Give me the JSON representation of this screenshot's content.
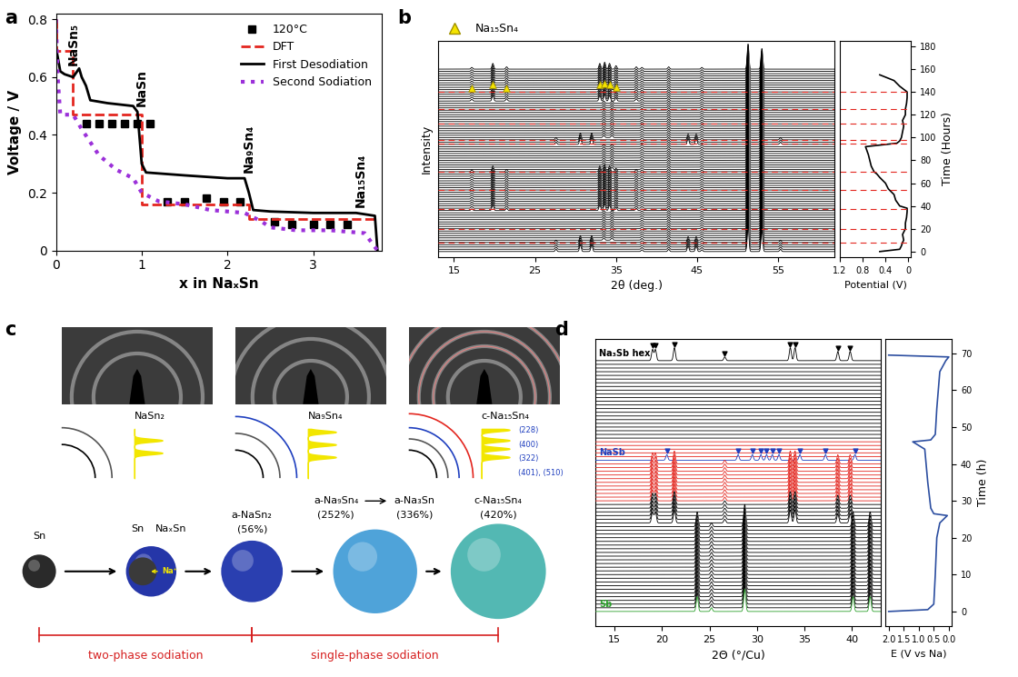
{
  "chart_data": [
    {
      "panel": "a",
      "type": "line",
      "xlabel": "x in NaₓSn",
      "ylabel": "Voltage / V",
      "xlim": [
        0,
        3.8
      ],
      "ylim": [
        0,
        0.82
      ],
      "xticks": [
        0,
        1,
        2,
        3
      ],
      "yticks": [
        0,
        0.2,
        0.4,
        0.6,
        0.8
      ],
      "grid": false,
      "legend": "upper right",
      "series": [
        {
          "name": "120°C",
          "type": "scatter",
          "color": "#000000",
          "marker": "square",
          "x": [
            0.35,
            0.5,
            0.65,
            0.8,
            0.95,
            1.1,
            1.3,
            1.5,
            1.75,
            1.95,
            2.15,
            2.55,
            2.75,
            3.0,
            3.2,
            3.4
          ],
          "values": [
            0.44,
            0.44,
            0.44,
            0.44,
            0.44,
            0.44,
            0.17,
            0.17,
            0.18,
            0.17,
            0.17,
            0.1,
            0.09,
            0.09,
            0.09,
            0.09
          ]
        },
        {
          "name": "DFT",
          "type": "line",
          "color": "#e3261f",
          "line_style": "dashed",
          "x": [
            0,
            0,
            0.2,
            0.2,
            1.0,
            1.0,
            2.25,
            2.25,
            3.75
          ],
          "values": [
            0.8,
            0.69,
            0.69,
            0.47,
            0.47,
            0.16,
            0.16,
            0.11,
            0.11
          ]
        },
        {
          "name": "First Desodiation",
          "type": "line",
          "color": "#000000",
          "line_style": "solid",
          "x": [
            0,
            0.02,
            0.05,
            0.1,
            0.2,
            0.27,
            0.3,
            0.35,
            0.4,
            0.6,
            0.9,
            0.95,
            1.0,
            1.05,
            1.5,
            2.0,
            2.2,
            2.25,
            2.3,
            2.5,
            3.0,
            3.5,
            3.72,
            3.75
          ],
          "values": [
            0.7,
            0.67,
            0.62,
            0.61,
            0.6,
            0.63,
            0.6,
            0.57,
            0.52,
            0.51,
            0.5,
            0.48,
            0.3,
            0.27,
            0.26,
            0.25,
            0.25,
            0.2,
            0.14,
            0.135,
            0.13,
            0.13,
            0.12,
            0.0
          ]
        },
        {
          "name": "Second Sodiation",
          "type": "line",
          "color": "#9b30d9",
          "line_style": "dotted",
          "x": [
            0,
            0.02,
            0.05,
            0.2,
            0.3,
            0.5,
            0.7,
            0.9,
            1.0,
            1.2,
            1.5,
            1.8,
            2.2,
            2.4,
            2.5,
            2.8,
            3.2,
            3.6,
            3.75
          ],
          "values": [
            0.8,
            0.6,
            0.47,
            0.47,
            0.42,
            0.33,
            0.28,
            0.25,
            0.2,
            0.17,
            0.16,
            0.14,
            0.13,
            0.1,
            0.08,
            0.07,
            0.07,
            0.06,
            0.0
          ]
        }
      ],
      "annotations": [
        {
          "text": "NaSn₅",
          "x": 0.2,
          "y": 0.64
        },
        {
          "text": "NaSn",
          "x": 1.0,
          "y": 0.5
        },
        {
          "text": "Na₉Sn₄",
          "x": 2.25,
          "y": 0.27
        },
        {
          "text": "Na₁₅Sn₄",
          "x": 3.55,
          "y": 0.15
        }
      ]
    },
    {
      "panel": "b",
      "type": "waterfall",
      "xlabel": "2θ (deg.)",
      "ylabel": "Intensity",
      "xlim": [
        13,
        62
      ],
      "xticks": [
        15,
        25,
        35,
        45,
        55
      ],
      "ylim": [
        -5,
        185
      ],
      "tick_labels": "x",
      "grid": false,
      "legend": "upper left",
      "pattern_step": 2,
      "marked_times": [
        8,
        20,
        37,
        54,
        70,
        95,
        98,
        112,
        125,
        140
      ],
      "constant_peaks": {
        "positions": [
          38.2,
          41.5,
          45.6,
          51.3,
          53.0
        ],
        "heights": [
          1.5,
          2,
          1.5,
          22,
          18
        ]
      },
      "segments": [
        {
          "t": [
            0,
            10
          ],
          "color": "#000000",
          "peaks": {
            "positions": [
              27.6,
              30.6,
              32.0,
              43.9,
              44.9,
              55.3
            ],
            "heights": [
              2,
              6,
              6,
              5,
              5,
              2
            ]
          }
        },
        {
          "t": [
            10,
            36
          ],
          "color": "#000000",
          "peaks": {
            "positions": [
              33.5,
              34.5
            ],
            "heights": [
              2,
              2
            ]
          }
        },
        {
          "t": [
            36,
            72
          ],
          "color": "#000000",
          "peaks": {
            "positions": [
              17.2,
              19.8,
              21.5,
              33.0,
              33.6,
              34.2,
              35.0,
              37.5
            ],
            "heights": [
              1.5,
              5,
              2,
              5,
              6,
              5,
              3,
              2
            ]
          }
        },
        {
          "t": [
            72,
            94
          ],
          "color": "#000000",
          "peaks": {
            "positions": [
              33.5,
              34.5
            ],
            "heights": [
              2,
              2
            ]
          }
        },
        {
          "t": [
            94,
            100
          ],
          "color": "#000000",
          "peaks": {
            "positions": [
              27.6,
              30.6,
              32.0,
              43.9,
              44.9,
              55.3
            ],
            "heights": [
              2,
              6,
              6,
              5,
              5,
              2
            ]
          }
        },
        {
          "t": [
            100,
            132
          ],
          "color": "#000000",
          "peaks": {
            "positions": [
              33.5,
              34.5
            ],
            "heights": [
              2,
              2
            ]
          }
        },
        {
          "t": [
            132,
            162
          ],
          "color": "#000000",
          "peaks": {
            "positions": [
              17.2,
              19.8,
              21.5,
              33.0,
              33.6,
              34.2,
              35.0,
              37.5
            ],
            "heights": [
              1.5,
              5,
              2,
              5,
              6,
              5,
              3,
              2
            ]
          }
        }
      ],
      "markers": {
        "name": "Na₁₅Sn₄",
        "color": "#f5e400",
        "time": 140,
        "x": [
          17.2,
          19.8,
          21.5,
          33.0,
          33.6,
          34.2,
          35.0
        ]
      },
      "side": {
        "type": "line",
        "xlabel": "Potential (V)",
        "ylabel": "Time (Hours)",
        "xlim": [
          1.2,
          -0.05
        ],
        "xticks": [
          1.2,
          0.8,
          0.4,
          0
        ],
        "ylim": [
          -5,
          185
        ],
        "yticks": [
          0,
          20,
          40,
          60,
          80,
          100,
          120,
          140,
          160,
          180
        ],
        "series": [
          {
            "color": "#000000",
            "x": [
              0.5,
              0.15,
              0.12,
              0.1,
              0.08,
              0.1,
              0.05,
              0.05,
              0.03,
              0.02,
              0.02,
              0.15,
              0.22,
              0.25,
              0.35,
              0.4,
              0.5,
              0.55,
              0.6,
              0.65,
              0.7,
              0.75,
              0.2,
              0.15,
              0.12,
              0.1,
              0.08,
              0.1,
              0.05,
              0.05,
              0.03,
              0.02,
              0.02,
              0.15,
              0.25,
              0.4,
              0.5
            ],
            "values": [
              0,
              2,
              5,
              8,
              10,
              15,
              20,
              25,
              30,
              35,
              38,
              40,
              45,
              50,
              55,
              60,
              65,
              68,
              70,
              75,
              85,
              92,
              95,
              97,
              100,
              105,
              110,
              115,
              120,
              125,
              130,
              135,
              140,
              145,
              150,
              153,
              155
            ]
          }
        ]
      }
    },
    {
      "panel": "d",
      "type": "waterfall",
      "xlabel": "2Θ (°/Cu)",
      "xlim": [
        13,
        43
      ],
      "xticks": [
        15,
        20,
        25,
        30,
        35,
        40
      ],
      "ylim": [
        -4,
        74
      ],
      "tick_labels": "x",
      "grid": false,
      "pattern_step": 1,
      "segments": [
        {
          "t": [
            0,
            1
          ],
          "color": "#2ca02c",
          "peaks": {
            "positions": [
              23.7,
              25.2,
              28.7,
              40.1,
              41.9
            ],
            "heights": [
              4,
              1,
              6,
              4,
              4
            ]
          }
        },
        {
          "t": [
            1,
            24
          ],
          "color": "#000000",
          "peaks": {
            "positions": [
              23.7,
              25.2,
              28.7,
              40.1,
              41.9
            ],
            "heights": [
              4,
              1,
              6,
              4,
              4
            ]
          }
        },
        {
          "t": [
            24,
            30
          ],
          "color": "#000000",
          "peaks": {
            "positions": [
              19.0,
              19.3,
              21.3,
              33.5,
              34.0,
              38.5,
              39.8,
              26.6
            ],
            "heights": [
              3,
              3,
              3.5,
              3.5,
              3.5,
              2.5,
              2.5,
              1
            ]
          }
        },
        {
          "t": [
            30,
            41
          ],
          "color": "#e3261f",
          "peaks": {
            "positions": [
              19.0,
              19.3,
              21.3,
              33.5,
              34.0,
              38.5,
              39.8,
              26.6
            ],
            "heights": [
              3,
              3,
              3.5,
              3.5,
              3.5,
              2.5,
              2.5,
              1
            ]
          }
        },
        {
          "t": [
            41,
            42
          ],
          "color": "#1f3fbf",
          "peaks": {
            "positions": [
              20.5,
              28.0,
              29.5,
              30.4,
              31.0,
              31.6,
              32.3,
              34.5,
              37.2,
              40.3
            ],
            "heights": [
              1.5,
              1.5,
              1.5,
              1.5,
              1.5,
              1.5,
              1.5,
              1.5,
              1.5,
              1.5
            ]
          }
        },
        {
          "t": [
            42,
            47
          ],
          "color": "#e3261f",
          "peaks": {
            "positions": [],
            "heights": []
          }
        },
        {
          "t": [
            47,
            68
          ],
          "color": "#000000",
          "peaks": {
            "positions": [],
            "heights": []
          }
        },
        {
          "t": [
            68,
            69
          ],
          "color": "#000000",
          "peaks": {
            "positions": [
              19.0,
              19.3,
              21.3,
              33.5,
              34.0,
              38.5,
              39.8,
              26.6
            ],
            "heights": [
              3,
              3,
              3.5,
              3.5,
              3.5,
              2.5,
              2.5,
              1
            ]
          }
        }
      ],
      "arrows": [
        {
          "time": 68,
          "color": "#000000",
          "x": [
            19.0,
            19.3,
            21.3,
            26.6,
            33.5,
            34.0,
            38.5,
            39.8
          ]
        },
        {
          "time": 41,
          "color": "#1f3fbf",
          "x": [
            20.5,
            28.0,
            29.5,
            30.4,
            31.0,
            31.6,
            32.3,
            34.5,
            37.2,
            40.3
          ]
        }
      ],
      "labels": [
        {
          "text": "Na₃Sb hex",
          "time": 68,
          "color": "#000000"
        },
        {
          "text": "NaSb",
          "time": 41,
          "color": "#1f3fbf"
        },
        {
          "text": "Sb",
          "time": 0,
          "color": "#2ca02c"
        }
      ],
      "side": {
        "type": "line",
        "xlabel": "E (V vs Na)",
        "ylabel": "Time (h)",
        "xlim": [
          2.1,
          -0.1
        ],
        "xticks": [
          {
            "value": 2.0,
            "label": "2.0"
          },
          {
            "value": 1.5,
            "label": "1.5"
          },
          {
            "value": 1.0,
            "label": "1.0"
          },
          {
            "value": 0.5,
            "label": "0.5"
          },
          {
            "value": 0.0,
            "label": "0.0"
          }
        ],
        "ylim": [
          -4,
          74
        ],
        "yticks": [
          0,
          10,
          20,
          30,
          40,
          50,
          60,
          70
        ],
        "series": [
          {
            "color": "#2c4ea0",
            "x": [
              2.0,
              0.7,
              0.5,
              0.45,
              0.4,
              0.3,
              0.05,
              0.5,
              0.6,
              0.7,
              0.8,
              1.2,
              0.6,
              0.45,
              0.4,
              0.3,
              0.1,
              0.0,
              2.0
            ],
            "values": [
              0,
              0.5,
              2,
              10,
              20,
              24,
              26,
              26.5,
              28,
              35,
              44,
              46,
              46.5,
              48,
              55,
              65,
              68,
              69,
              69.5
            ]
          }
        ]
      }
    }
  ],
  "diagram": {
    "panel": "c",
    "images": [
      {
        "label": "NaSn₂"
      },
      {
        "label": "Na₉Sn₄"
      },
      {
        "label": "c-Na₁₅Sn₄",
        "indices": [
          "(228)",
          "(400)",
          "(322)",
          "(401), (510)"
        ]
      }
    ],
    "stages": [
      {
        "labels": [
          "Sn"
        ]
      },
      {
        "labels": [
          "Sn",
          "NaₓSn"
        ],
        "ion": "Na⁺"
      },
      {
        "labels": [
          "a-NaSn₂",
          "(56%)"
        ]
      },
      {
        "labels": [
          "a-Na₉Sn₄",
          "(252%)",
          "a-Na₃Sn",
          "(336%)"
        ]
      },
      {
        "labels": [
          "c-Na₁₅Sn₄",
          "(420%)"
        ]
      }
    ],
    "ranges": [
      {
        "label": "two-phase sodiation"
      },
      {
        "label": "single-phase sodiation"
      }
    ]
  }
}
